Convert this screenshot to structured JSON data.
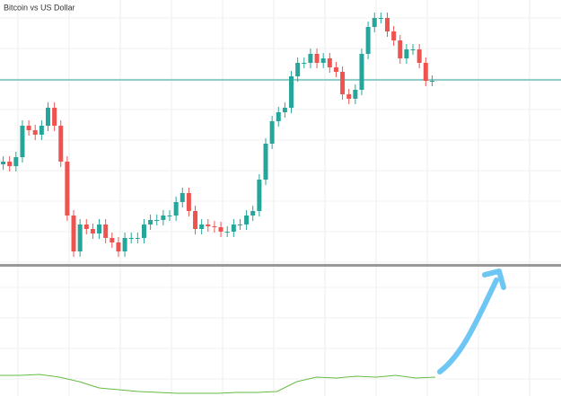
{
  "chart_data": [
    {
      "type": "candlestick",
      "title": "Bitcoin vs US Dollar",
      "open": [
        112,
        115,
        110,
        120,
        155,
        150,
        145,
        155,
        175,
        155,
        115,
        55,
        15,
        45,
        40,
        35,
        45,
        30,
        25,
        15,
        30,
        30,
        30,
        45,
        50,
        50,
        55,
        55,
        70,
        80,
        60,
        40,
        45,
        43,
        42,
        37,
        37,
        45,
        45,
        55,
        60,
        95,
        135,
        160,
        170,
        175,
        210,
        225,
        225,
        235,
        225,
        230,
        220,
        215,
        190,
        185,
        195,
        235,
        265,
        275,
        275,
        260,
        250,
        230,
        240,
        240,
        225,
        205
      ],
      "high": [
        121,
        121,
        126,
        161,
        161,
        156,
        161,
        181,
        181,
        161,
        121,
        61,
        51,
        51,
        46,
        51,
        51,
        36,
        31,
        36,
        36,
        36,
        51,
        56,
        56,
        61,
        61,
        76,
        86,
        86,
        66,
        51,
        51,
        49,
        48,
        43,
        51,
        51,
        61,
        66,
        101,
        141,
        166,
        176,
        181,
        216,
        231,
        231,
        241,
        241,
        236,
        236,
        226,
        221,
        196,
        201,
        241,
        271,
        281,
        281,
        281,
        266,
        256,
        246,
        246,
        246,
        231,
        211
      ],
      "low": [
        106,
        104,
        104,
        114,
        144,
        139,
        139,
        149,
        149,
        109,
        49,
        9,
        9,
        34,
        29,
        29,
        24,
        19,
        9,
        9,
        24,
        24,
        24,
        39,
        44,
        44,
        49,
        49,
        64,
        54,
        34,
        34,
        37,
        36,
        31,
        31,
        31,
        39,
        39,
        49,
        54,
        89,
        129,
        154,
        164,
        169,
        204,
        219,
        219,
        219,
        219,
        214,
        209,
        184,
        179,
        179,
        189,
        229,
        259,
        269,
        254,
        244,
        224,
        224,
        234,
        219,
        199,
        199
      ],
      "close": [
        115,
        110,
        120,
        155,
        150,
        145,
        155,
        175,
        155,
        115,
        55,
        15,
        45,
        40,
        35,
        45,
        30,
        25,
        15,
        30,
        30,
        30,
        45,
        50,
        50,
        55,
        55,
        70,
        80,
        60,
        40,
        45,
        43,
        42,
        37,
        37,
        45,
        45,
        55,
        60,
        95,
        135,
        160,
        170,
        175,
        210,
        225,
        225,
        235,
        225,
        230,
        220,
        215,
        190,
        185,
        195,
        235,
        265,
        275,
        275,
        260,
        250,
        230,
        240,
        240,
        225,
        205,
        205
      ],
      "up_color": "#26a69a",
      "down_color": "#ef5350",
      "hline": 206,
      "hline_color": "#26a69a",
      "ylim": [
        0,
        295
      ]
    },
    {
      "type": "line",
      "values": [
        23,
        23,
        24,
        21,
        16,
        9,
        7,
        5,
        4,
        3,
        3,
        3,
        4,
        4,
        5,
        16,
        21,
        20,
        22,
        21,
        23,
        20,
        21
      ],
      "color": "#66bb44",
      "ylim": [
        0,
        144
      ]
    }
  ]
}
